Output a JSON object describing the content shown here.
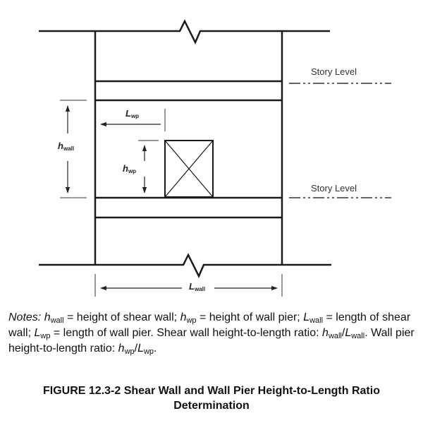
{
  "diagram": {
    "story_level_upper": "Story Level",
    "story_level_lower": "Story Level",
    "labels": {
      "h_wall": {
        "main": "h",
        "sub": "wall"
      },
      "l_wp": {
        "main": "L",
        "sub": "wp"
      },
      "h_wp": {
        "main": "h",
        "sub": "wp"
      },
      "l_wall": {
        "main": "L",
        "sub": "wall"
      }
    }
  },
  "notes": {
    "lead": "Notes:",
    "h_wall_def": "= height of shear wall;",
    "h_wp_def": "= height of wall pier;",
    "l_wall_def": "= length of shear wall;",
    "l_wp_def": "= length of wall pier. Shear wall height-to-length ratio:",
    "wall_ratio_tail": ". Wall pier height-to-length ratio:",
    "end": "."
  },
  "caption": {
    "line1": "FIGURE 12.3-2 Shear Wall and Wall Pier Height-to-Length Ratio",
    "line2": "Determination"
  }
}
